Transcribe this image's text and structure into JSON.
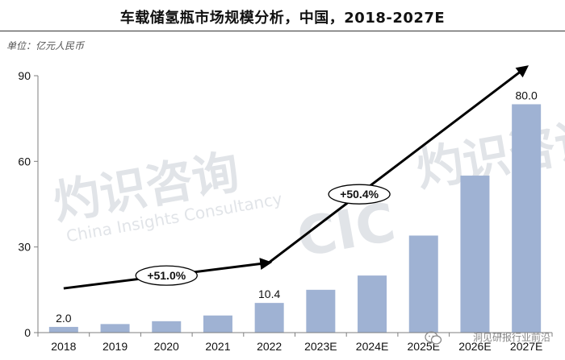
{
  "header": {
    "title": "车载储氢瓶市场规模分析，中国，2018-2027E",
    "unit": "单位：亿元人民币"
  },
  "colors": {
    "bar": "#9fb2d3",
    "arrow": "#000000",
    "axis": "#7f7f7f"
  },
  "watermark": {
    "cn": "灼识咨询",
    "en": "China Insights Consultancy",
    "logo": "CIC"
  },
  "footer": {
    "wechat_account": "洞见研报行业前沿",
    "icon": "wechat-icon"
  },
  "chart_data": {
    "type": "bar",
    "categories": [
      "2018",
      "2019",
      "2020",
      "2021",
      "2022",
      "2023E",
      "2024E",
      "2025E",
      "2026E",
      "2027E"
    ],
    "values": [
      2.0,
      3.0,
      4.0,
      6.0,
      10.4,
      15.0,
      20.0,
      34.0,
      55.0,
      80.0
    ],
    "data_labels": [
      {
        "index": 0,
        "text": "2.0"
      },
      {
        "index": 4,
        "text": "10.4"
      },
      {
        "index": 9,
        "text": "80.0"
      }
    ],
    "yticks": [
      "0",
      "30",
      "60",
      "90"
    ],
    "ylim": [
      0,
      90
    ],
    "grid": false,
    "annotations": [
      {
        "text": "+51.0%",
        "from": "2018",
        "to": "2022"
      },
      {
        "text": "+50.4%",
        "from": "2022",
        "to": "2027E"
      }
    ]
  }
}
